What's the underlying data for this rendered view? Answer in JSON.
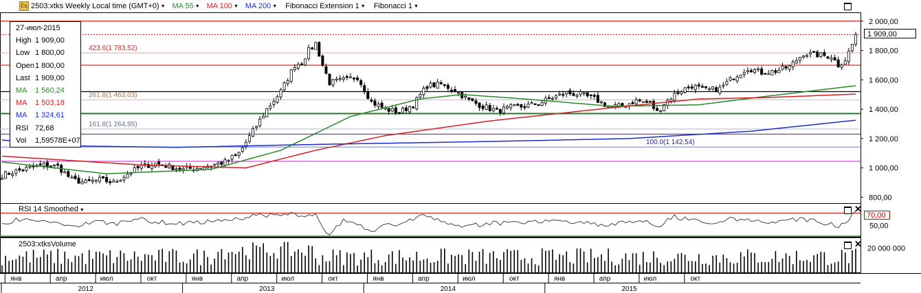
{
  "header": {
    "symbol_label": "2503:xtks Weekly Local time (GMT+0)",
    "icon": "eq-icon",
    "indicators": [
      {
        "label": "MA 55",
        "color": "#2a8a2a"
      },
      {
        "label": "MA 100",
        "color": "#d42020"
      },
      {
        "label": "MA 200",
        "color": "#1c2ec8"
      },
      {
        "label": "Fibonacci Extension 1",
        "color": "#000000"
      },
      {
        "label": "Fibonacci 1",
        "color": "#000000"
      }
    ]
  },
  "info_box": {
    "date": "27-июл-2015",
    "rows": [
      {
        "k": "High",
        "v": "1 909,00",
        "color": "#000000"
      },
      {
        "k": "Low",
        "v": "1 800,00",
        "color": "#000000"
      },
      {
        "k": "Open",
        "v": "1 800,00",
        "color": "#000000"
      },
      {
        "k": "Last",
        "v": "1 909,00",
        "color": "#000000"
      },
      {
        "k": "MA",
        "v": "1 560,24",
        "color": "#2a8a2a"
      },
      {
        "k": "MA",
        "v": "1 503,18",
        "color": "#d42020"
      },
      {
        "k": "MA",
        "v": "1 324,61",
        "color": "#1c2ec8"
      },
      {
        "k": "RSI",
        "v": "72,68",
        "color": "#000000"
      },
      {
        "k": "Vol",
        "v": "1,59578E+07",
        "color": "#000000"
      }
    ]
  },
  "last_price_label": "1 909,00",
  "rsi_panel": {
    "title": "RSI 14 Smoothed",
    "level_label": "70,00",
    "level_color": "#cc0000"
  },
  "volume_panel": {
    "title": "2503:xtksVolume"
  },
  "chart_data": [
    {
      "type": "candlestick",
      "title": "2503:xtks Weekly",
      "ylim": [
        760,
        2060
      ],
      "y_ticks": [
        "2 000,00",
        "1 800,00",
        "1 600,00",
        "1 400,00",
        "1 200,00",
        "1 000,00",
        "800,00"
      ],
      "y_tick_values": [
        2000,
        1800,
        1600,
        1400,
        1200,
        1000,
        800
      ],
      "close_anchors": [
        [
          0,
          950
        ],
        [
          6,
          990
        ],
        [
          12,
          1020
        ],
        [
          16,
          1010
        ],
        [
          20,
          920
        ],
        [
          24,
          900
        ],
        [
          28,
          920
        ],
        [
          32,
          900
        ],
        [
          36,
          960
        ],
        [
          40,
          1010
        ],
        [
          44,
          1030
        ],
        [
          48,
          1010
        ],
        [
          52,
          990
        ],
        [
          56,
          1000
        ],
        [
          60,
          1020
        ],
        [
          64,
          1040
        ],
        [
          68,
          1100
        ],
        [
          72,
          1250
        ],
        [
          76,
          1400
        ],
        [
          80,
          1520
        ],
        [
          84,
          1700
        ],
        [
          86,
          1720
        ],
        [
          88,
          1800
        ],
        [
          90,
          1850
        ],
        [
          92,
          1700
        ],
        [
          94,
          1580
        ],
        [
          98,
          1600
        ],
        [
          102,
          1620
        ],
        [
          106,
          1450
        ],
        [
          110,
          1400
        ],
        [
          114,
          1380
        ],
        [
          118,
          1430
        ],
        [
          122,
          1560
        ],
        [
          126,
          1570
        ],
        [
          130,
          1530
        ],
        [
          134,
          1460
        ],
        [
          138,
          1420
        ],
        [
          142,
          1390
        ],
        [
          146,
          1410
        ],
        [
          150,
          1420
        ],
        [
          154,
          1440
        ],
        [
          158,
          1480
        ],
        [
          162,
          1510
        ],
        [
          166,
          1500
        ],
        [
          170,
          1470
        ],
        [
          174,
          1420
        ],
        [
          178,
          1420
        ],
        [
          182,
          1460
        ],
        [
          186,
          1440
        ],
        [
          188,
          1380
        ],
        [
          190,
          1440
        ],
        [
          194,
          1520
        ],
        [
          198,
          1560
        ],
        [
          202,
          1530
        ],
        [
          206,
          1540
        ],
        [
          210,
          1620
        ],
        [
          214,
          1680
        ],
        [
          218,
          1650
        ],
        [
          222,
          1660
        ],
        [
          226,
          1690
        ],
        [
          230,
          1780
        ],
        [
          234,
          1770
        ],
        [
          238,
          1760
        ],
        [
          240,
          1700
        ],
        [
          242,
          1740
        ],
        [
          244,
          1840
        ],
        [
          245,
          1909
        ]
      ],
      "fib_levels": [
        {
          "label": "423.6(1 783,52)",
          "value": 1783.52
        },
        {
          "label": "261.8(1 463,03)",
          "value": 1463.03
        },
        {
          "label": "161.8(1 264,95)",
          "value": 1264.95
        },
        {
          "label": "100.0(1 142,54)",
          "value": 1142.54
        }
      ],
      "fib_retracement_levels": [
        2000,
        1700,
        1520,
        1370,
        1230,
        1045
      ],
      "ma_55_anchors": [
        [
          0,
          1040
        ],
        [
          30,
          960
        ],
        [
          60,
          990
        ],
        [
          80,
          1120
        ],
        [
          100,
          1350
        ],
        [
          120,
          1470
        ],
        [
          132,
          1500
        ],
        [
          150,
          1470
        ],
        [
          175,
          1420
        ],
        [
          200,
          1430
        ],
        [
          220,
          1490
        ],
        [
          245,
          1560
        ]
      ],
      "ma_100_anchors": [
        [
          0,
          1080
        ],
        [
          40,
          1020
        ],
        [
          70,
          1000
        ],
        [
          90,
          1120
        ],
        [
          110,
          1220
        ],
        [
          140,
          1320
        ],
        [
          175,
          1410
        ],
        [
          200,
          1470
        ],
        [
          220,
          1480
        ],
        [
          245,
          1503
        ]
      ],
      "ma_200_anchors": [
        [
          0,
          1190
        ],
        [
          20,
          1150
        ],
        [
          50,
          1140
        ],
        [
          90,
          1160
        ],
        [
          140,
          1180
        ],
        [
          180,
          1200
        ],
        [
          215,
          1250
        ],
        [
          245,
          1325
        ]
      ],
      "legend_labels": [
        "MA 55",
        "MA 100",
        "MA 200"
      ]
    },
    {
      "type": "line",
      "title": "RSI 14 Smoothed",
      "ylim": [
        32,
        85
      ],
      "y_ticks": [
        "50,00"
      ],
      "y_tick_values": [
        50
      ],
      "level": 70
    },
    {
      "type": "bar",
      "title": "2503:xtksVolume",
      "ylim": [
        0,
        28000000
      ],
      "y_ticks": [
        "20 000 000"
      ],
      "y_tick_values": [
        20000000
      ]
    }
  ],
  "x_axis": {
    "months": [
      {
        "label": "янв",
        "bar": 4
      },
      {
        "label": "апр",
        "bar": 17
      },
      {
        "label": "июл",
        "bar": 30
      },
      {
        "label": "окт",
        "bar": 43
      },
      {
        "label": "янв",
        "bar": 56
      },
      {
        "label": "апр",
        "bar": 69
      },
      {
        "label": "июл",
        "bar": 82
      },
      {
        "label": "окт",
        "bar": 95
      },
      {
        "label": "янв",
        "bar": 108
      },
      {
        "label": "апр",
        "bar": 121
      },
      {
        "label": "июл",
        "bar": 134
      },
      {
        "label": "окт",
        "bar": 147
      },
      {
        "label": "янв",
        "bar": 160
      },
      {
        "label": "апр",
        "bar": 173
      },
      {
        "label": "июл",
        "bar": 186
      },
      {
        "label": "окт",
        "bar": 199
      }
    ],
    "years": [
      {
        "label": "2012",
        "bar": 24
      },
      {
        "label": "2013",
        "bar": 76
      },
      {
        "label": "2014",
        "bar": 128
      },
      {
        "label": "2015",
        "bar": 180
      }
    ]
  }
}
